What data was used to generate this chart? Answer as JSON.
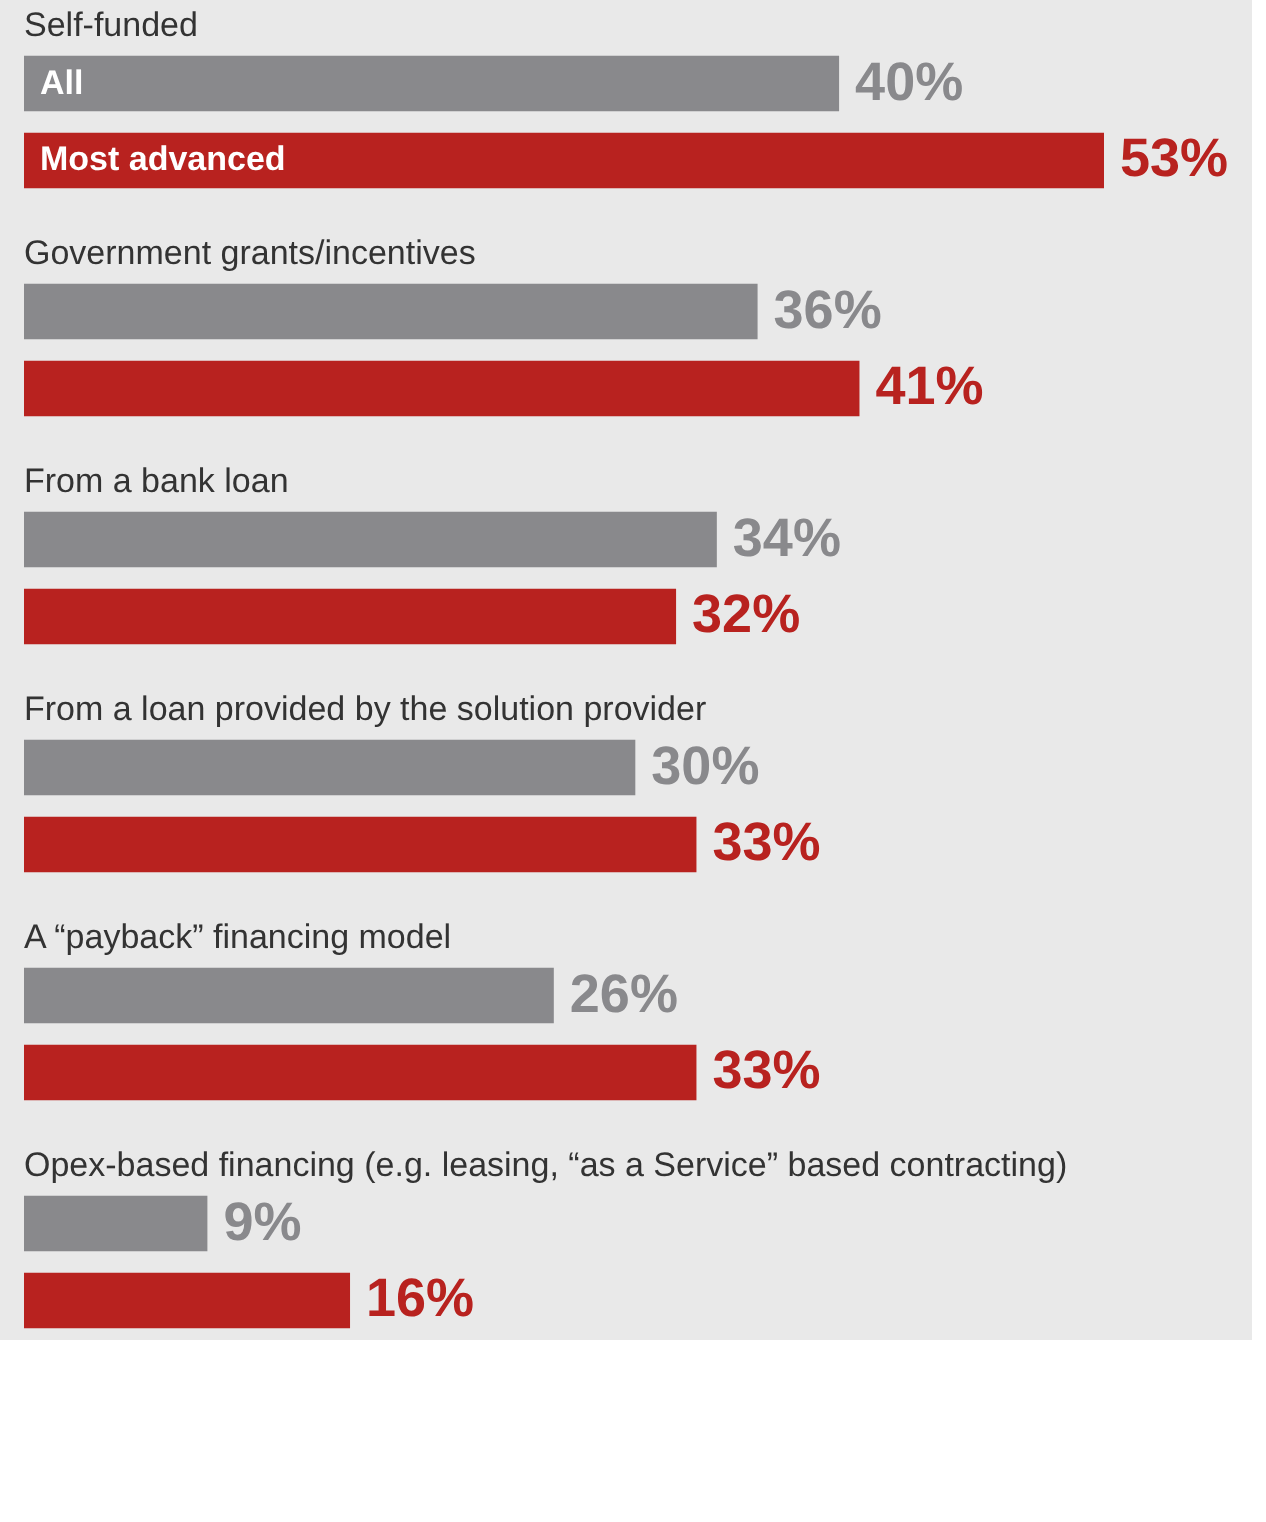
{
  "chart_data": {
    "type": "bar",
    "orientation": "horizontal",
    "legend": false,
    "categories": [
      "Self-funded",
      "Government grants/incentives",
      "From a bank loan",
      "From a loan provided by the solution provider",
      "A “payback” financing model",
      "Opex-based financing (e.g. leasing, “as a Service” based contracting)"
    ],
    "series": [
      {
        "name": "All",
        "color": "#89898c",
        "values": [
          40,
          36,
          34,
          30,
          26,
          9
        ],
        "value_labels": [
          "40%",
          "36%",
          "34%",
          "30%",
          "26%",
          "9%"
        ]
      },
      {
        "name": "Most advanced",
        "color": "#b8221f",
        "values": [
          53,
          41,
          32,
          33,
          33,
          16
        ],
        "value_labels": [
          "53%",
          "41%",
          "32%",
          "33%",
          "33%",
          "16%"
        ]
      }
    ]
  }
}
